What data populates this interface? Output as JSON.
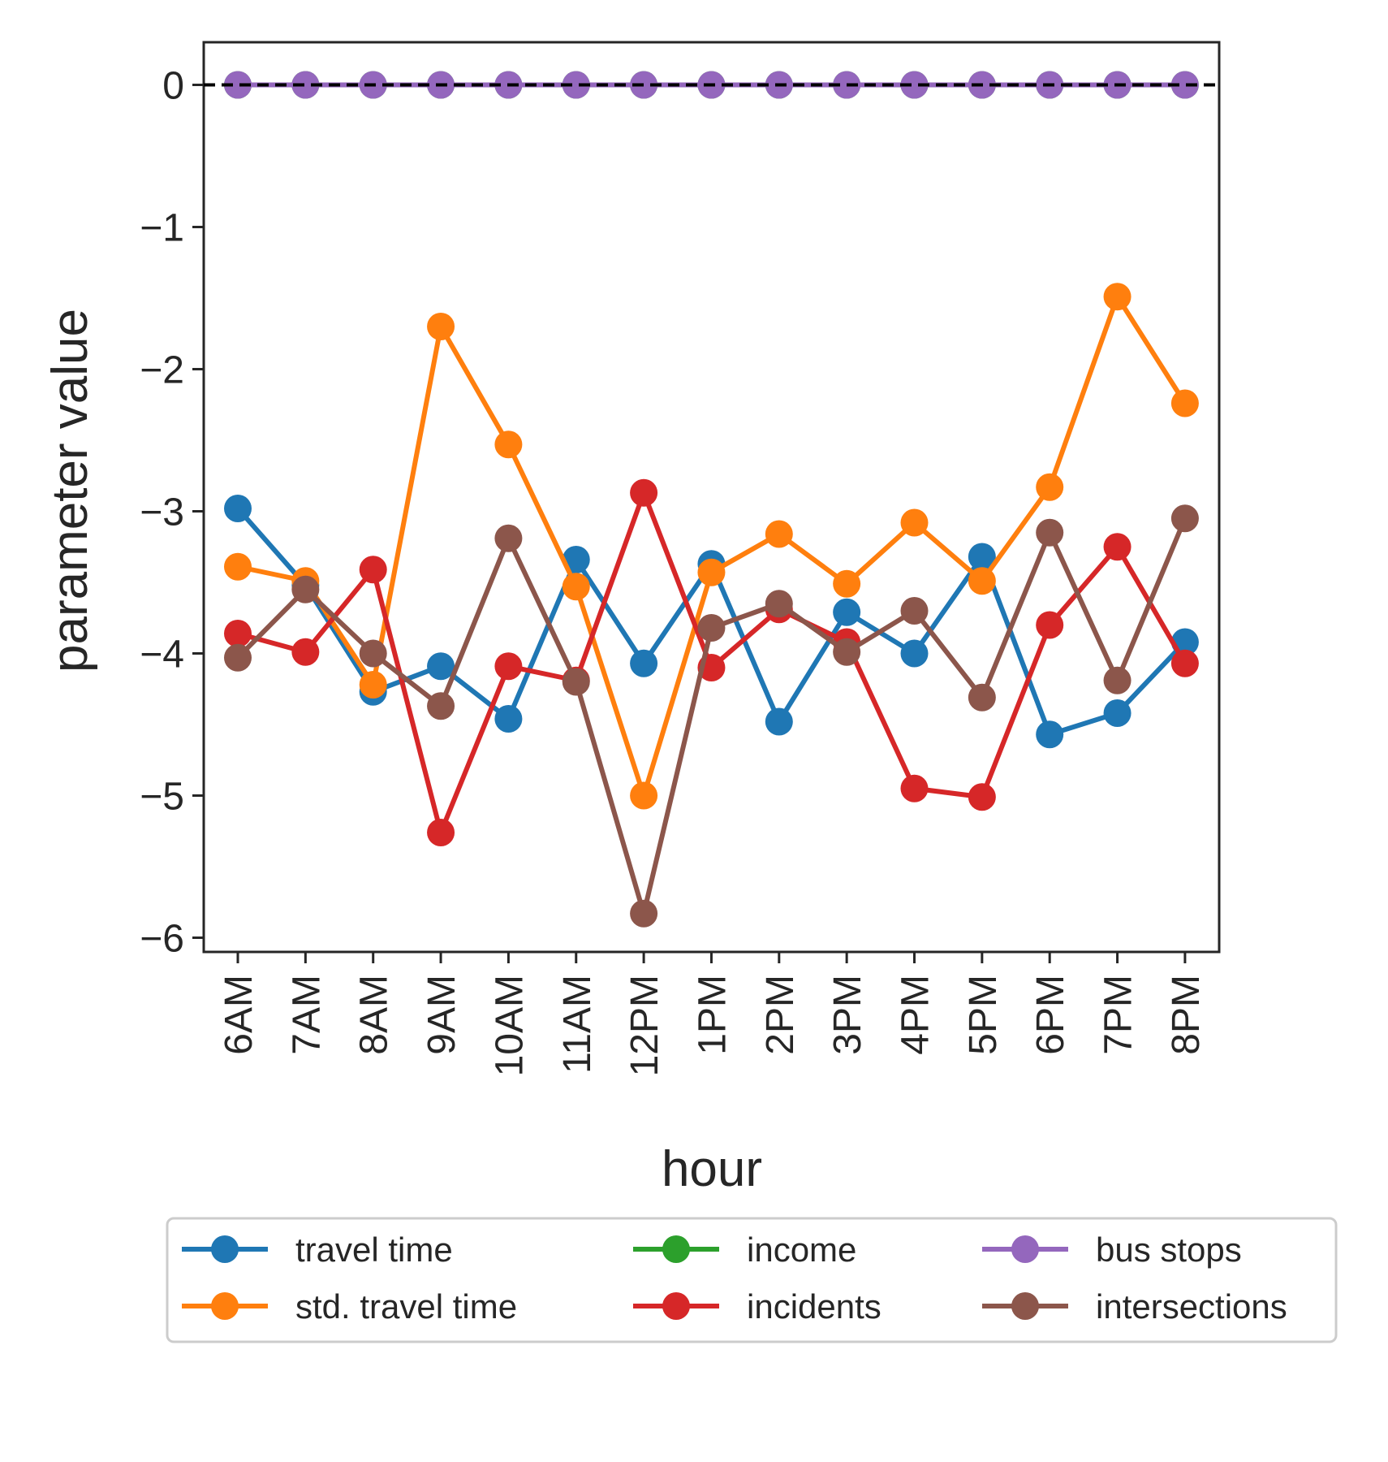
{
  "chart_data": {
    "type": "line",
    "xlabel": "hour",
    "ylabel": "parameter value",
    "categories": [
      "6AM",
      "7AM",
      "8AM",
      "9AM",
      "10AM",
      "11AM",
      "12PM",
      "1PM",
      "2PM",
      "3PM",
      "4PM",
      "5PM",
      "6PM",
      "7PM",
      "8PM"
    ],
    "ylim": [
      -6.1,
      0.3
    ],
    "yticks": [
      0,
      -1,
      -2,
      -3,
      -4,
      -5,
      -6
    ],
    "ytick_labels": [
      "0",
      "−1",
      "−2",
      "−3",
      "−4",
      "−5",
      "−6"
    ],
    "reference_line": {
      "y": 0,
      "style": "dashed",
      "color": "#000000"
    },
    "grid": false,
    "legend_position": "bottom-center",
    "legend_columns": 3,
    "series": [
      {
        "name": "travel time",
        "color": "#1f77b4",
        "values": [
          -2.98,
          -3.52,
          -4.27,
          -4.09,
          -4.46,
          -3.34,
          -4.07,
          -3.37,
          -4.48,
          -3.71,
          -4.0,
          -3.32,
          -4.57,
          -4.42,
          -3.92
        ]
      },
      {
        "name": "std. travel time",
        "color": "#ff7f0e",
        "values": [
          -3.39,
          -3.49,
          -4.22,
          -1.7,
          -2.53,
          -3.53,
          -5.0,
          -3.43,
          -3.16,
          -3.51,
          -3.08,
          -3.49,
          -2.83,
          -1.49,
          -2.24
        ]
      },
      {
        "name": "income",
        "color": "#2ca02c",
        "values": [
          0,
          0,
          0,
          0,
          0,
          0,
          0,
          0,
          0,
          0,
          0,
          0,
          0,
          0,
          0
        ]
      },
      {
        "name": "incidents",
        "color": "#d62728",
        "values": [
          -3.86,
          -3.99,
          -3.41,
          -5.26,
          -4.09,
          -4.19,
          -2.87,
          -4.1,
          -3.69,
          -3.92,
          -4.95,
          -5.01,
          -3.8,
          -3.25,
          -4.07
        ]
      },
      {
        "name": "bus stops",
        "color": "#9467bd",
        "values": [
          0,
          0,
          0,
          0,
          0,
          0,
          0,
          0,
          0,
          0,
          0,
          0,
          0,
          0,
          0
        ]
      },
      {
        "name": "intersections",
        "color": "#8c564b",
        "values": [
          -4.03,
          -3.55,
          -4.0,
          -4.37,
          -3.19,
          -4.2,
          -5.83,
          -3.82,
          -3.65,
          -3.99,
          -3.7,
          -4.31,
          -3.15,
          -4.19,
          -3.05
        ]
      }
    ]
  }
}
